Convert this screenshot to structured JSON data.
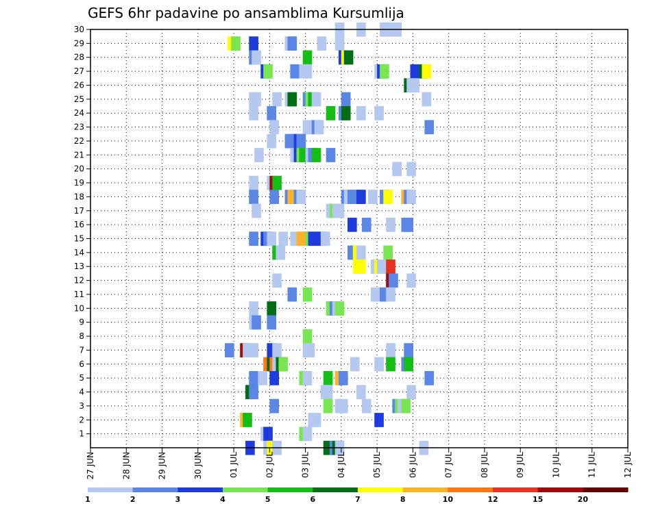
{
  "chart_data": {
    "type": "heatmap",
    "title": "GEFS 6hr padavine po ansamblima Kursumlija",
    "xlabel": "",
    "ylabel": "",
    "x_tick_labels": [
      "27 JUN",
      "28 JUN",
      "29 JUN",
      "30 JUN",
      "01 JUL",
      "02 JUL",
      "03 JUL",
      "04 JUL",
      "05 JUL",
      "06 JUL",
      "07 JUL",
      "08 JUL",
      "09 JUL",
      "10 JUL",
      "11 JUL",
      "12 JUL"
    ],
    "y_tick_labels": [
      "1",
      "2",
      "3",
      "4",
      "5",
      "6",
      "7",
      "8",
      "9",
      "10",
      "11",
      "12",
      "13",
      "14",
      "15",
      "16",
      "17",
      "18",
      "19",
      "20",
      "21",
      "22",
      "23",
      "24",
      "25",
      "26",
      "27",
      "28",
      "29",
      "30"
    ],
    "x_start": "27 JUN 00Z",
    "x_step_hours": 6,
    "ylim": [
      0,
      30
    ],
    "grid": true,
    "legend": {
      "position": "bottom",
      "labels": [
        "1",
        "2",
        "3",
        "4",
        "5",
        "6",
        "7",
        "8",
        "10",
        "12",
        "15",
        "20"
      ],
      "colors": [
        "#b4c8f0",
        "#5a87e6",
        "#1e3cdc",
        "#78e650",
        "#14be14",
        "#006e14",
        "#ffff00",
        "#ffb428",
        "#ff7814",
        "#e6321e",
        "#a00a0a",
        "#640000"
      ]
    },
    "values_description": "6-hourly precipitation classes per ensemble member",
    "cells": [
      [
        30,
        [
          [
            27.3,
            1
          ],
          [
            29.7,
            1
          ],
          [
            32.3,
            1
          ],
          [
            32.7,
            1
          ],
          [
            33.7,
            1
          ]
        ]
      ],
      [
        29,
        [
          [
            15.3,
            7
          ],
          [
            15.7,
            4
          ],
          [
            17.7,
            3
          ],
          [
            21.7,
            1
          ],
          [
            22.0,
            2
          ],
          [
            25.3,
            1
          ],
          [
            27.3,
            1
          ]
        ]
      ],
      [
        28,
        [
          [
            17.7,
            2
          ],
          [
            18.0,
            1
          ],
          [
            23.7,
            5
          ],
          [
            27.7,
            3
          ],
          [
            28.0,
            7
          ],
          [
            28.3,
            6
          ]
        ]
      ],
      [
        27,
        [
          [
            19.0,
            3
          ],
          [
            19.3,
            4
          ],
          [
            22.3,
            2
          ],
          [
            23.3,
            1
          ],
          [
            23.7,
            1
          ],
          [
            31.7,
            1
          ],
          [
            32.0,
            3
          ],
          [
            32.3,
            4
          ],
          [
            35.7,
            3
          ],
          [
            36.7,
            6
          ],
          [
            37.0,
            7
          ]
        ]
      ],
      [
        26,
        [
          [
            35.0,
            6
          ],
          [
            35.3,
            1
          ],
          [
            35.7,
            1
          ]
        ]
      ],
      [
        25,
        [
          [
            17.7,
            1
          ],
          [
            18.0,
            1
          ],
          [
            20.3,
            1
          ],
          [
            21.7,
            1
          ],
          [
            22.0,
            6
          ],
          [
            23.7,
            2
          ],
          [
            24.0,
            4
          ],
          [
            24.3,
            5
          ],
          [
            24.7,
            1
          ],
          [
            28.0,
            2
          ],
          [
            37.0,
            1
          ]
        ]
      ],
      [
        24,
        [
          [
            17.7,
            1
          ],
          [
            19.7,
            2
          ],
          [
            26.3,
            5
          ],
          [
            27.7,
            2
          ],
          [
            28.0,
            6
          ],
          [
            29.7,
            1
          ],
          [
            31.7,
            1
          ]
        ]
      ],
      [
        23,
        [
          [
            20.0,
            1
          ],
          [
            23.7,
            1
          ],
          [
            24.7,
            2
          ],
          [
            25.0,
            1
          ],
          [
            37.3,
            2
          ]
        ]
      ],
      [
        22,
        [
          [
            19.7,
            1
          ],
          [
            21.7,
            2
          ],
          [
            22.0,
            2
          ],
          [
            22.3,
            2
          ],
          [
            22.7,
            3
          ],
          [
            23.0,
            2
          ]
        ]
      ],
      [
        21,
        [
          [
            18.3,
            1
          ],
          [
            22.3,
            1
          ],
          [
            22.7,
            3
          ],
          [
            23.0,
            4
          ],
          [
            23.3,
            5
          ],
          [
            24.0,
            1
          ],
          [
            24.3,
            2
          ],
          [
            24.7,
            5
          ],
          [
            26.3,
            2
          ]
        ]
      ],
      [
        20,
        [
          [
            33.7,
            1
          ],
          [
            35.3,
            1
          ]
        ]
      ],
      [
        19,
        [
          [
            17.7,
            1
          ],
          [
            19.7,
            1
          ],
          [
            20.0,
            11
          ],
          [
            20.3,
            5
          ]
        ]
      ],
      [
        18,
        [
          [
            17.7,
            2
          ],
          [
            20.0,
            2
          ],
          [
            21.7,
            2
          ],
          [
            22.0,
            8
          ],
          [
            22.7,
            2
          ],
          [
            23.0,
            1
          ],
          [
            28.0,
            2
          ],
          [
            28.3,
            1
          ],
          [
            28.7,
            2
          ],
          [
            29.0,
            2
          ],
          [
            29.3,
            2
          ],
          [
            29.7,
            3
          ],
          [
            31.0,
            1
          ],
          [
            32.3,
            2
          ],
          [
            32.7,
            7
          ],
          [
            34.7,
            8
          ],
          [
            35.0,
            2
          ],
          [
            35.3,
            1
          ]
        ]
      ],
      [
        17,
        [
          [
            18.0,
            1
          ],
          [
            26.3,
            1
          ],
          [
            26.7,
            4
          ],
          [
            27.0,
            1
          ],
          [
            27.3,
            1
          ]
        ]
      ],
      [
        16,
        [
          [
            28.7,
            3
          ],
          [
            30.3,
            2
          ],
          [
            33.0,
            1
          ],
          [
            34.7,
            2
          ],
          [
            35.0,
            2
          ]
        ]
      ],
      [
        15,
        [
          [
            17.7,
            2
          ],
          [
            19.0,
            3
          ],
          [
            19.3,
            2
          ],
          [
            19.7,
            1
          ],
          [
            21.0,
            1
          ],
          [
            22.3,
            1
          ],
          [
            22.7,
            1
          ],
          [
            23.0,
            8
          ],
          [
            24.0,
            4
          ],
          [
            24.3,
            3
          ],
          [
            25.3,
            3
          ],
          [
            25.7,
            1
          ]
        ]
      ],
      [
        14,
        [
          [
            20.3,
            5
          ],
          [
            20.7,
            1
          ],
          [
            28.7,
            2
          ],
          [
            29.0,
            2
          ],
          [
            29.3,
            7
          ],
          [
            29.7,
            1
          ],
          [
            32.7,
            4
          ]
        ]
      ],
      [
        13,
        [
          [
            29.3,
            7
          ],
          [
            29.7,
            7
          ],
          [
            31.3,
            1
          ],
          [
            31.7,
            7
          ],
          [
            32.0,
            1
          ],
          [
            32.7,
            1
          ],
          [
            33.0,
            10
          ]
        ]
      ],
      [
        12,
        [
          [
            20.3,
            1
          ],
          [
            33.0,
            11
          ],
          [
            33.3,
            2
          ],
          [
            35.3,
            1
          ]
        ]
      ],
      [
        11,
        [
          [
            22.0,
            2
          ],
          [
            23.7,
            4
          ],
          [
            31.3,
            1
          ],
          [
            32.3,
            2
          ],
          [
            33.0,
            1
          ]
        ]
      ],
      [
        10,
        [
          [
            17.7,
            1
          ],
          [
            19.7,
            6
          ],
          [
            26.3,
            4
          ],
          [
            26.7,
            2
          ],
          [
            27.0,
            1
          ],
          [
            27.3,
            4
          ]
        ]
      ],
      [
        9,
        [
          [
            17.7,
            1
          ],
          [
            18.0,
            2
          ],
          [
            19.7,
            2
          ]
        ]
      ],
      [
        8,
        [
          [
            23.7,
            4
          ]
        ]
      ],
      [
        7,
        [
          [
            15.0,
            2
          ],
          [
            16.7,
            11
          ],
          [
            17.0,
            1
          ],
          [
            17.3,
            1
          ],
          [
            17.7,
            1
          ],
          [
            19.7,
            3
          ],
          [
            20.3,
            1
          ],
          [
            23.7,
            1
          ],
          [
            24.0,
            1
          ],
          [
            33.0,
            1
          ],
          [
            35.0,
            2
          ]
        ]
      ],
      [
        6,
        [
          [
            19.3,
            9
          ],
          [
            19.7,
            6
          ],
          [
            20.0,
            9
          ],
          [
            20.3,
            1
          ],
          [
            20.7,
            6
          ],
          [
            21.0,
            4
          ],
          [
            29.0,
            1
          ],
          [
            31.7,
            1
          ],
          [
            33.0,
            5
          ],
          [
            34.7,
            2
          ],
          [
            35.0,
            5
          ]
        ]
      ],
      [
        5,
        [
          [
            17.7,
            2
          ],
          [
            18.7,
            1
          ],
          [
            20.0,
            3
          ],
          [
            23.3,
            4
          ],
          [
            23.7,
            1
          ],
          [
            26.0,
            5
          ],
          [
            27.3,
            8
          ],
          [
            27.7,
            2
          ],
          [
            37.3,
            2
          ]
        ]
      ],
      [
        4,
        [
          [
            17.3,
            6
          ],
          [
            17.7,
            2
          ],
          [
            25.7,
            1
          ],
          [
            26.0,
            1
          ],
          [
            29.7,
            1
          ],
          [
            35.3,
            1
          ]
        ]
      ],
      [
        3,
        [
          [
            20.0,
            2
          ],
          [
            26.0,
            4
          ],
          [
            27.3,
            1
          ],
          [
            27.7,
            1
          ],
          [
            30.3,
            1
          ],
          [
            33.7,
            2
          ],
          [
            34.0,
            4
          ],
          [
            34.3,
            1
          ],
          [
            34.7,
            4
          ]
        ]
      ],
      [
        2,
        [
          [
            16.7,
            8
          ],
          [
            17.0,
            5
          ],
          [
            24.3,
            1
          ],
          [
            24.7,
            1
          ],
          [
            31.7,
            3
          ]
        ]
      ],
      [
        1,
        [
          [
            19.0,
            1
          ],
          [
            19.3,
            3
          ],
          [
            23.3,
            4
          ],
          [
            23.7,
            1
          ]
        ]
      ],
      [
        0,
        [
          [
            17.3,
            3
          ],
          [
            19.3,
            1
          ],
          [
            19.7,
            7
          ],
          [
            20.3,
            1
          ],
          [
            26.0,
            6
          ],
          [
            26.7,
            2
          ],
          [
            27.0,
            6
          ],
          [
            27.3,
            1
          ],
          [
            36.7,
            1
          ]
        ]
      ]
    ]
  }
}
